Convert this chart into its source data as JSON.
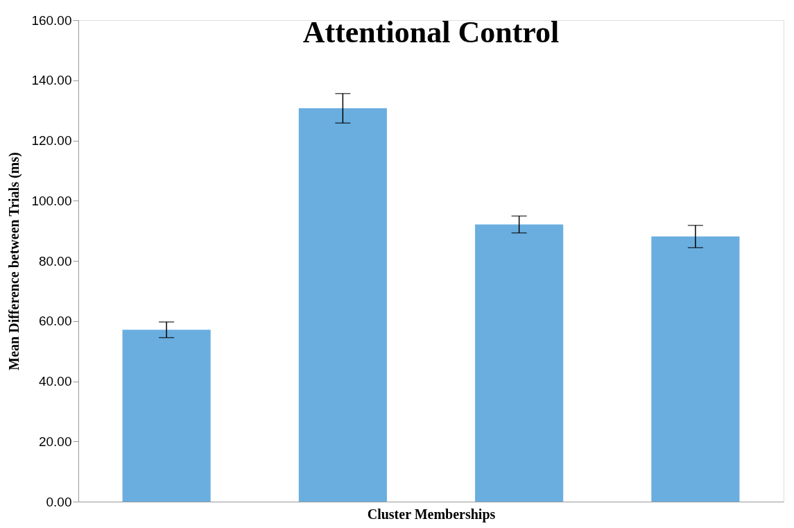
{
  "chart_data": {
    "type": "bar",
    "title": "Attentional Control",
    "xlabel": "Cluster Memberships",
    "ylabel": "Mean Difference between Trials (ms)",
    "categories": [
      null,
      null,
      null,
      null
    ],
    "values": [
      57.1,
      130.7,
      92.1,
      88.1
    ],
    "errors": [
      2.6,
      4.9,
      2.8,
      3.7
    ],
    "color": "#6aaee0",
    "ylim": [
      0,
      160
    ],
    "yticks": [
      {
        "value": 0,
        "label": "0.00"
      },
      {
        "value": 20,
        "label": "20.00"
      },
      {
        "value": 40,
        "label": "40.00"
      },
      {
        "value": 60,
        "label": "60.00"
      },
      {
        "value": 80,
        "label": "80.00"
      },
      {
        "value": 100,
        "label": "100.00"
      },
      {
        "value": 120,
        "label": "120.00"
      },
      {
        "value": 140,
        "label": "140.00"
      },
      {
        "value": 160,
        "label": "160.00"
      }
    ],
    "grid": false
  }
}
